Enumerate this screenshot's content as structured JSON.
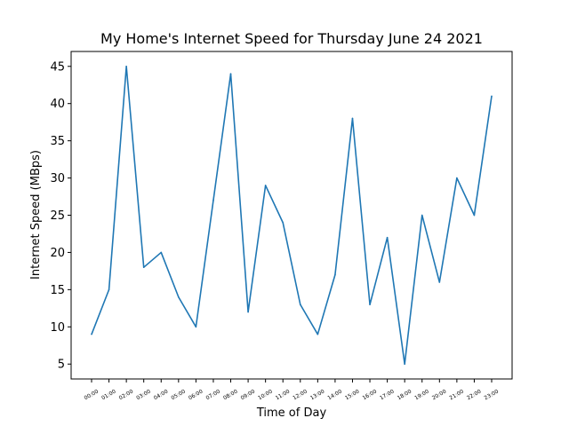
{
  "chart_data": {
    "type": "line",
    "title": "My Home's Internet Speed for Thursday June 24 2021",
    "xlabel": "Time of Day",
    "ylabel": "Internet Speed (MBps)",
    "categories": [
      "00:00",
      "01:00",
      "02:00",
      "03:00",
      "04:00",
      "05:00",
      "06:00",
      "07:00",
      "08:00",
      "09:00",
      "10:00",
      "11:00",
      "12:00",
      "13:00",
      "14:00",
      "15:00",
      "16:00",
      "17:00",
      "18:00",
      "19:00",
      "20:00",
      "21:00",
      "22:00",
      "23:00"
    ],
    "values": [
      9,
      15,
      45,
      18,
      20,
      14,
      10,
      27,
      44,
      12,
      29,
      24,
      13,
      9,
      17,
      38,
      13,
      22,
      5,
      25,
      16,
      30,
      25,
      41
    ],
    "yticks": [
      5,
      10,
      15,
      20,
      25,
      30,
      35,
      40,
      45
    ],
    "ylim": [
      3,
      47
    ],
    "grid": false,
    "color": "#1f77b4"
  }
}
